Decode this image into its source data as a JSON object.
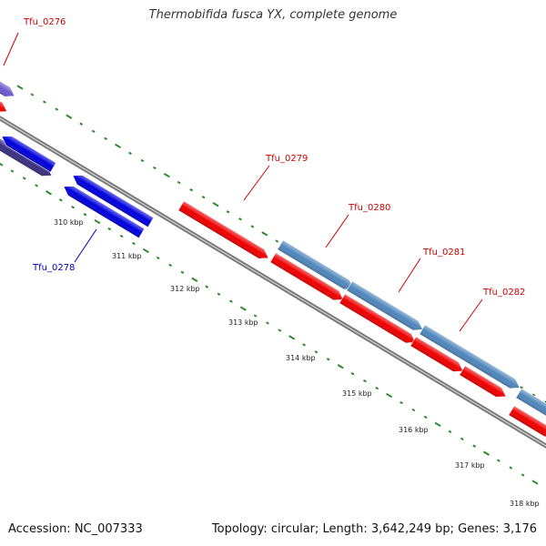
{
  "header": {
    "title": "Thermobifida fusca YX, complete genome"
  },
  "footer": {
    "accession": "Accession: NC_007333",
    "summary": "Topology: circular; Length: 3,642,249 bp; Genes: 3,176"
  },
  "colors": {
    "backbone": "#7a7a7a",
    "ruler": "#2a8a2a",
    "gene_red": "#ee0000",
    "gene_blue": "#0000dd",
    "gene_steel": "#4f86bb",
    "gene_purple": "#6a5acd",
    "gene_dark_purple": "#3a3080",
    "label_red": "#cc0000",
    "label_blue": "#0000bb"
  },
  "gene_labels": [
    {
      "id": "tfu-0276",
      "text": "Tfu_0276",
      "color": "#cc0000"
    },
    {
      "id": "tfu-0278",
      "text": "Tfu_0278",
      "color": "#0000bb"
    },
    {
      "id": "tfu-0279",
      "text": "Tfu_0279",
      "color": "#cc0000"
    },
    {
      "id": "tfu-0280",
      "text": "Tfu_0280",
      "color": "#cc0000"
    },
    {
      "id": "tfu-0281",
      "text": "Tfu_0281",
      "color": "#cc0000"
    },
    {
      "id": "tfu-0282",
      "text": "Tfu_0282",
      "color": "#cc0000"
    }
  ],
  "ruler": {
    "unit": "kbp",
    "labels": [
      "310 kbp",
      "311 kbp",
      "312 kbp",
      "313 kbp",
      "314 kbp",
      "315 kbp",
      "316 kbp",
      "317 kbp",
      "318 kbp"
    ]
  }
}
